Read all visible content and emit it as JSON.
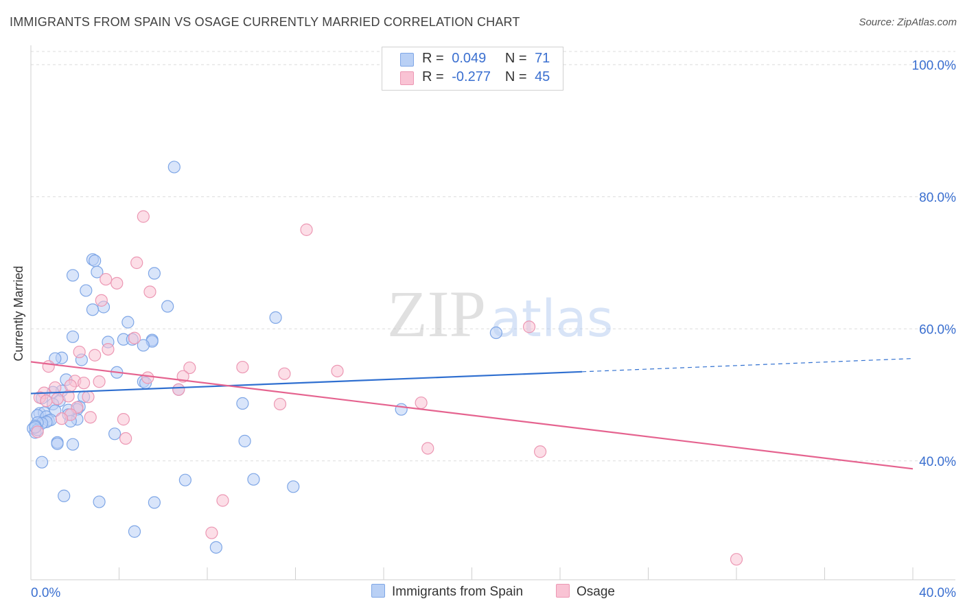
{
  "title": "IMMIGRANTS FROM SPAIN VS OSAGE CURRENTLY MARRIED CORRELATION CHART",
  "source": "Source: ZipAtlas.com",
  "watermark": {
    "zip": "ZIP",
    "atlas": "atlas"
  },
  "legend": {
    "series1": {
      "r_label": "R =",
      "r_value": "0.049",
      "n_label": "N =",
      "n_value": "71"
    },
    "series2": {
      "r_label": "R =",
      "r_value": "-0.277",
      "n_label": "N =",
      "n_value": "45"
    }
  },
  "bottom_legend": {
    "series1": "Immigrants from Spain",
    "series2": "Osage"
  },
  "colors": {
    "blue_fill": "#b9d0f5",
    "blue_stroke": "#7ea6e6",
    "blue_line": "#2f6fd0",
    "pink_fill": "#f9c3d4",
    "pink_stroke": "#ec97b3",
    "pink_line": "#e5638f",
    "axis_label": "#3a6fd0",
    "grid": "#dcdcdc"
  },
  "chart_data": {
    "type": "scatter",
    "title": "IMMIGRANTS FROM SPAIN VS OSAGE CURRENTLY MARRIED CORRELATION CHART",
    "xlabel": "",
    "ylabel": "Currently Married",
    "xlim": [
      0,
      40
    ],
    "ylim": [
      22,
      102
    ],
    "x_tick_labels": [
      "0.0%",
      "40.0%"
    ],
    "y_ticks": [
      40,
      60,
      80,
      100
    ],
    "y_tick_labels": [
      "40.0%",
      "60.0%",
      "80.0%",
      "100.0%"
    ],
    "series": [
      {
        "name": "Immigrants from Spain",
        "color": "#7ea6e6",
        "trend": {
          "x0": 0,
          "y0": 50.2,
          "x1": 25.0,
          "y1": 53.5,
          "dash_x1": 40,
          "dash_y1": 55.5
        },
        "points": [
          [
            6.5,
            84.5
          ],
          [
            2.8,
            70.5
          ],
          [
            2.9,
            70.3
          ],
          [
            1.9,
            68.1
          ],
          [
            5.6,
            68.4
          ],
          [
            3.0,
            68.6
          ],
          [
            2.5,
            65.8
          ],
          [
            3.3,
            63.3
          ],
          [
            2.8,
            62.9
          ],
          [
            6.2,
            63.4
          ],
          [
            11.1,
            61.7
          ],
          [
            4.4,
            61.0
          ],
          [
            21.1,
            59.4
          ],
          [
            1.9,
            58.8
          ],
          [
            3.5,
            58.0
          ],
          [
            4.2,
            58.4
          ],
          [
            4.6,
            58.4
          ],
          [
            5.5,
            58.3
          ],
          [
            5.5,
            58.1
          ],
          [
            5.1,
            57.5
          ],
          [
            1.4,
            55.6
          ],
          [
            1.1,
            55.5
          ],
          [
            2.3,
            55.3
          ],
          [
            3.9,
            53.4
          ],
          [
            1.6,
            52.3
          ],
          [
            5.1,
            52.0
          ],
          [
            5.2,
            51.8
          ],
          [
            6.7,
            50.8
          ],
          [
            1.4,
            50.6
          ],
          [
            1.0,
            50.4
          ],
          [
            0.5,
            49.5
          ],
          [
            9.6,
            48.7
          ],
          [
            2.4,
            49.7
          ],
          [
            1.3,
            49.1
          ],
          [
            1.0,
            48.6
          ],
          [
            2.2,
            48.2
          ],
          [
            2.1,
            47.8
          ],
          [
            1.7,
            47.7
          ],
          [
            1.1,
            47.6
          ],
          [
            0.4,
            47.2
          ],
          [
            0.6,
            47.3
          ],
          [
            0.3,
            46.9
          ],
          [
            0.7,
            46.7
          ],
          [
            16.8,
            47.8
          ],
          [
            1.7,
            47.0
          ],
          [
            2.1,
            46.3
          ],
          [
            0.8,
            46.1
          ],
          [
            0.9,
            46.2
          ],
          [
            0.7,
            45.9
          ],
          [
            0.5,
            45.7
          ],
          [
            0.3,
            45.8
          ],
          [
            0.2,
            45.3
          ],
          [
            1.8,
            46.0
          ],
          [
            0.1,
            44.9
          ],
          [
            0.2,
            44.3
          ],
          [
            0.3,
            44.7
          ],
          [
            0.2,
            45.1
          ],
          [
            3.8,
            44.1
          ],
          [
            1.2,
            42.8
          ],
          [
            1.2,
            42.6
          ],
          [
            1.9,
            42.5
          ],
          [
            9.7,
            43.0
          ],
          [
            0.5,
            39.8
          ],
          [
            7.0,
            37.1
          ],
          [
            10.1,
            37.2
          ],
          [
            11.9,
            36.1
          ],
          [
            1.5,
            34.7
          ],
          [
            3.1,
            33.8
          ],
          [
            5.6,
            33.7
          ],
          [
            4.7,
            29.3
          ],
          [
            8.4,
            26.9
          ]
        ]
      },
      {
        "name": "Osage",
        "color": "#ec97b3",
        "trend": {
          "x0": 0,
          "y0": 55.0,
          "x1": 40,
          "y1": 38.8
        },
        "points": [
          [
            5.1,
            77.0
          ],
          [
            12.5,
            75.0
          ],
          [
            4.8,
            70.0
          ],
          [
            3.4,
            67.5
          ],
          [
            3.9,
            66.9
          ],
          [
            5.4,
            65.6
          ],
          [
            3.2,
            64.3
          ],
          [
            22.6,
            60.3
          ],
          [
            4.7,
            58.6
          ],
          [
            3.5,
            56.9
          ],
          [
            2.2,
            56.5
          ],
          [
            2.9,
            56.0
          ],
          [
            0.8,
            54.3
          ],
          [
            7.2,
            54.1
          ],
          [
            9.6,
            54.2
          ],
          [
            13.9,
            53.6
          ],
          [
            11.5,
            53.2
          ],
          [
            6.9,
            52.8
          ],
          [
            5.3,
            52.6
          ],
          [
            3.1,
            52.0
          ],
          [
            2.0,
            52.1
          ],
          [
            2.4,
            51.8
          ],
          [
            1.8,
            51.4
          ],
          [
            1.1,
            51.1
          ],
          [
            0.6,
            50.3
          ],
          [
            6.7,
            50.8
          ],
          [
            1.7,
            49.8
          ],
          [
            2.6,
            49.7
          ],
          [
            0.4,
            49.6
          ],
          [
            1.2,
            49.4
          ],
          [
            0.7,
            49.1
          ],
          [
            11.3,
            48.6
          ],
          [
            17.7,
            48.8
          ],
          [
            2.1,
            48.1
          ],
          [
            1.8,
            47.0
          ],
          [
            1.4,
            46.4
          ],
          [
            2.7,
            46.6
          ],
          [
            4.2,
            46.3
          ],
          [
            0.3,
            44.4
          ],
          [
            4.3,
            43.4
          ],
          [
            18.0,
            41.9
          ],
          [
            23.1,
            41.4
          ],
          [
            8.7,
            34.0
          ],
          [
            8.2,
            29.1
          ],
          [
            32.0,
            25.1
          ]
        ]
      }
    ]
  }
}
